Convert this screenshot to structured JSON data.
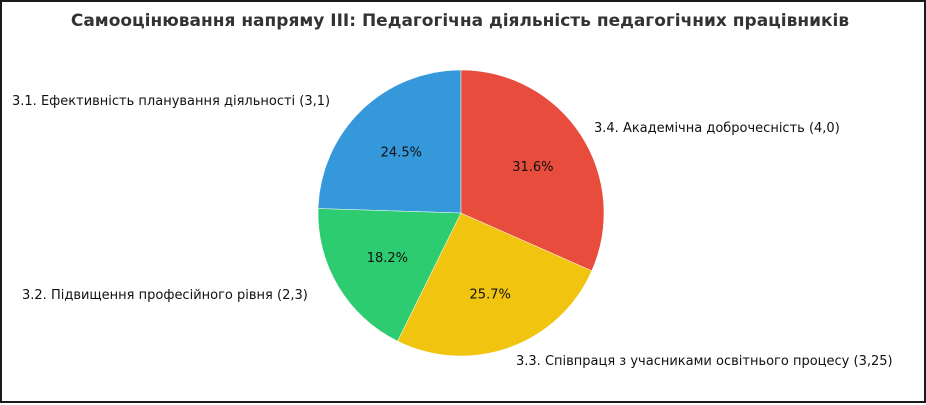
{
  "chart_data": {
    "type": "pie",
    "title": "Самооцінювання напряму III: Педагогічна діяльність педагогічних працівників",
    "categories": [
      "3.1. Ефективність планування діяльності (3,1)",
      "3.2. Підвищення професійного рівня (2,3)",
      "3.3. Співпраця з учасниками освітнього процесу (3,25)",
      "3.4. Академічна доброчесність (4,0)"
    ],
    "values": [
      3.1,
      2.3,
      3.25,
      4.0
    ],
    "percent_labels": [
      "24.5%",
      "18.2%",
      "25.7%",
      "31.6%"
    ],
    "colors": [
      "#3498db",
      "#2ecc71",
      "#f1c40f",
      "#e74c3c"
    ],
    "start_angle_deg": 90,
    "direction": "counterclockwise",
    "legend": "none"
  }
}
